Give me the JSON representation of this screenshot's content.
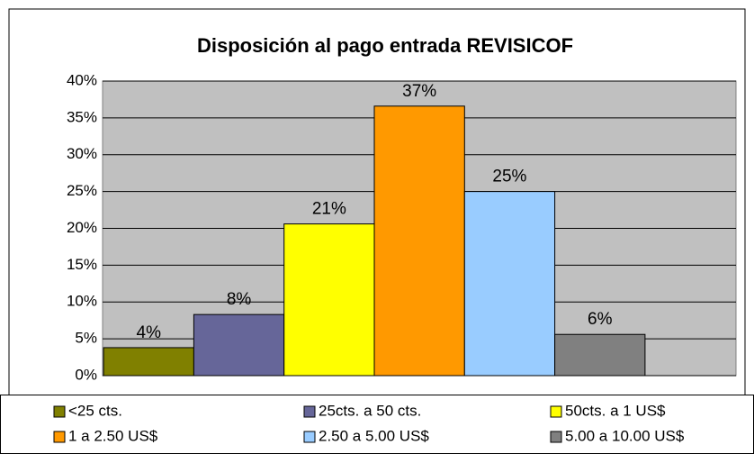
{
  "chart_data": {
    "type": "bar",
    "title": "Disposición al pago entrada REVISICOF",
    "categories": [
      null
    ],
    "series": [
      {
        "name": "<25 cts.",
        "color": "#808000",
        "values": [
          3.8
        ],
        "value_labels": [
          "4%"
        ]
      },
      {
        "name": "25cts. a 50 cts.",
        "color": "#666699",
        "values": [
          8.3
        ],
        "value_labels": [
          "8%"
        ]
      },
      {
        "name": "50cts. a 1 US$",
        "color": "#ffff00",
        "values": [
          20.6
        ],
        "value_labels": [
          "21%"
        ]
      },
      {
        "name": "1 a 2.50 US$",
        "color": "#ff9900",
        "values": [
          36.6
        ],
        "value_labels": [
          "37%"
        ]
      },
      {
        "name": "2.50 a 5.00 US$",
        "color": "#99ccff",
        "values": [
          25.0
        ],
        "value_labels": [
          "25%"
        ]
      },
      {
        "name": "5.00 a 10.00 US$",
        "color": "#808080",
        "values": [
          5.6
        ],
        "value_labels": [
          "6%"
        ]
      }
    ],
    "ylim": [
      0,
      40
    ],
    "yticks": [
      {
        "value": 0,
        "label": "0%"
      },
      {
        "value": 5,
        "label": "5%"
      },
      {
        "value": 10,
        "label": "10%"
      },
      {
        "value": 15,
        "label": "15%"
      },
      {
        "value": 20,
        "label": "20%"
      },
      {
        "value": 25,
        "label": "25%"
      },
      {
        "value": 30,
        "label": "30%"
      },
      {
        "value": 35,
        "label": "35%"
      },
      {
        "value": 40,
        "label": "40%"
      }
    ],
    "grid": true,
    "legend": "bottom"
  }
}
